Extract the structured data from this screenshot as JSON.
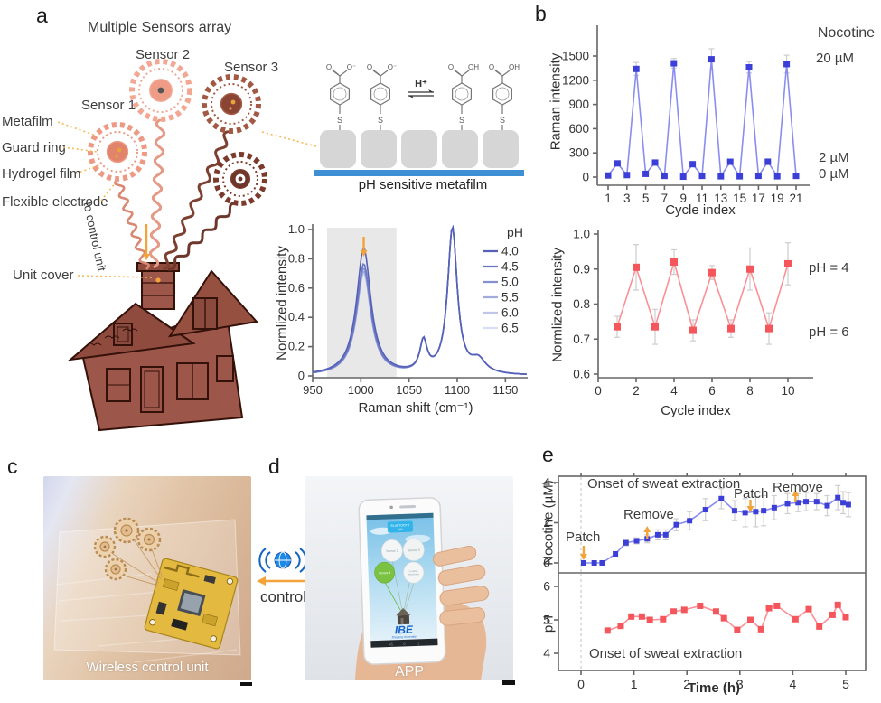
{
  "panel_a": {
    "label": "a",
    "title": "Multiple Sensors array",
    "sensors": [
      "Sensor 1",
      "Sensor 2",
      "Sensor 3"
    ],
    "callouts": [
      "Metafilm",
      "Guard ring",
      "Hydrogel film",
      "Flexible electrode"
    ],
    "unit_cover": "Unit cover",
    "wire_label": "to control unit",
    "chem": {
      "hplus": "H⁺",
      "o": "O",
      "o_minus": "O⁻",
      "oh": "OH",
      "s": "S",
      "caption": "pH sensitive metafilm"
    }
  },
  "panel_b": {
    "label": "b"
  },
  "panel_c": {
    "label": "c",
    "caption": "Wireless control unit"
  },
  "panel_d": {
    "label": "d",
    "caption": "APP",
    "phone": {
      "bt_line1": "BLUETOOTH",
      "bt_line2": "ON",
      "balloon_sensor2": "Sensor 2",
      "balloon_sensor3": "Sensor 3",
      "balloon_sensor1": "Sensor 1",
      "balloon_counter1": "counter",
      "balloon_counter2": "electrode",
      "logo": "IBE",
      "logo_sub": "Zhejiang University"
    }
  },
  "link_cd": {
    "label": "control"
  },
  "panel_e": {
    "label": "e"
  },
  "colors": {
    "blue_marker": "#3b3fd8",
    "blue_line": "#8a8df0",
    "red_marker": "#f4565c",
    "red_line": "#fb8f96",
    "orange": "#f2a438",
    "error_gray": "#cdcdcd",
    "spine": "#666666",
    "band_gray": "#e8e8e8",
    "metafilm_blue": "#3f8fd4",
    "block_gray": "#d6d6d6",
    "house": "#9d564a"
  },
  "chart_data": [
    {
      "id": "raman_spectra",
      "type": "line",
      "xlabel": "Raman shift (cm⁻¹)",
      "ylabel": "Normlized intensity",
      "xlim": [
        950,
        1172
      ],
      "ylim": [
        0,
        1.05
      ],
      "xticks": [
        950,
        1000,
        1050,
        1100,
        1150
      ],
      "yticks": [
        0,
        0.2,
        0.4,
        0.6,
        0.8,
        1.0
      ],
      "legend_title": "pH",
      "highlight_band": [
        965,
        1037
      ],
      "arrow_x": 1003,
      "peak_positions": [
        1003,
        1065,
        1095
      ],
      "series": [
        {
          "name": "4.0",
          "color": "#5560b8",
          "intensity_1003": 0.87
        },
        {
          "name": "4.5",
          "color": "#6b76c4",
          "intensity_1003": 0.76
        },
        {
          "name": "5.0",
          "color": "#8490d0",
          "intensity_1003": 0.73
        },
        {
          "name": "5.5",
          "color": "#a2abdd",
          "intensity_1003": 0.71
        },
        {
          "name": "6.0",
          "color": "#bfc6ea",
          "intensity_1003": 0.7
        },
        {
          "name": "6.5",
          "color": "#d8def4",
          "intensity_1003": 0.69
        }
      ]
    },
    {
      "id": "nicotine_cycles",
      "type": "line",
      "xlabel": "Cycle index",
      "ylabel": "Raman intensity",
      "xticks": [
        1,
        3,
        5,
        7,
        9,
        11,
        13,
        15,
        17,
        19,
        21
      ],
      "yticks": [
        0,
        300,
        600,
        900,
        1200,
        1500
      ],
      "right_labels": {
        "title": "Nocotine",
        "high": "20 µM",
        "mid": "2 µM",
        "low": "0 µM"
      },
      "x": [
        1,
        2,
        3,
        4,
        5,
        6,
        7,
        8,
        9,
        10,
        11,
        12,
        13,
        14,
        15,
        16,
        17,
        18,
        19,
        20,
        21
      ],
      "values": [
        20,
        170,
        25,
        1340,
        40,
        180,
        15,
        1410,
        5,
        160,
        15,
        1460,
        10,
        190,
        10,
        1360,
        15,
        190,
        10,
        1400,
        15
      ],
      "errors": [
        10,
        25,
        10,
        80,
        15,
        30,
        10,
        60,
        10,
        25,
        10,
        130,
        10,
        30,
        10,
        70,
        10,
        35,
        10,
        110,
        10
      ]
    },
    {
      "id": "ph_cycles",
      "type": "line",
      "xlabel": "Cycle index",
      "ylabel": "Normlized  intensity",
      "xticks": [
        0,
        2,
        4,
        6,
        8,
        10
      ],
      "yticks": [
        0.6,
        0.7,
        0.8,
        0.9,
        1.0
      ],
      "right_labels": {
        "high": "pH = 4",
        "low": "pH = 6"
      },
      "x": [
        1,
        2,
        3,
        4,
        5,
        6,
        7,
        8,
        9,
        10
      ],
      "values": [
        0.735,
        0.905,
        0.735,
        0.92,
        0.725,
        0.89,
        0.73,
        0.9,
        0.73,
        0.915
      ],
      "errors": [
        0.03,
        0.065,
        0.05,
        0.035,
        0.03,
        0.02,
        0.025,
        0.06,
        0.045,
        0.06
      ]
    },
    {
      "id": "sweat_monitoring",
      "type": "line",
      "xlabel": "Time (h)",
      "xticks": [
        0,
        1,
        2,
        3,
        4,
        5
      ],
      "subplots": [
        {
          "ylabel": "Nocotine (µM)",
          "yticks": [
            0,
            2,
            4
          ],
          "x": [
            0.05,
            0.25,
            0.4,
            0.65,
            0.85,
            1.05,
            1.25,
            1.45,
            1.6,
            1.8,
            2.05,
            2.35,
            2.65,
            2.9,
            3.1,
            3.3,
            3.45,
            3.65,
            3.9,
            4.1,
            4.25,
            4.45,
            4.65,
            4.85,
            4.95,
            5.05
          ],
          "values": [
            0,
            0,
            0,
            0.45,
            1.0,
            1.1,
            1.2,
            1.4,
            1.4,
            1.9,
            2.1,
            2.65,
            3.2,
            2.6,
            2.5,
            2.55,
            2.6,
            2.75,
            2.95,
            3.0,
            3.05,
            3.05,
            2.85,
            3.25,
            3.0,
            2.9
          ],
          "errors": [
            0.05,
            0.05,
            0.05,
            0.1,
            0.15,
            0.15,
            0.2,
            0.25,
            0.25,
            0.3,
            0.45,
            0.55,
            0.5,
            0.5,
            0.7,
            0.75,
            0.75,
            0.6,
            0.5,
            0.45,
            0.45,
            0.4,
            0.5,
            0.6,
            0.55,
            0.6
          ],
          "annotations": [
            {
              "text": "Onset of sweat extraction"
            },
            {
              "text": "Patch",
              "dir": "down",
              "x": 0.05
            },
            {
              "text": "Remove",
              "dir": "up",
              "x": 1.25
            },
            {
              "text": "Patch",
              "dir": "down",
              "x": 3.2
            },
            {
              "text": "Remove",
              "dir": "up",
              "x": 4.05
            }
          ]
        },
        {
          "ylabel": "pH",
          "yticks": [
            4,
            5,
            6
          ],
          "x": [
            0.5,
            0.75,
            0.95,
            1.15,
            1.3,
            1.55,
            1.75,
            1.95,
            2.25,
            2.55,
            2.7,
            2.95,
            3.2,
            3.4,
            3.55,
            3.7,
            4.05,
            4.3,
            4.5,
            4.75,
            4.85,
            5.0
          ],
          "values": [
            4.68,
            4.82,
            5.1,
            5.1,
            5.0,
            5.02,
            5.25,
            5.3,
            5.42,
            5.25,
            5.05,
            4.7,
            5.0,
            4.72,
            5.35,
            5.42,
            5.02,
            5.32,
            4.8,
            5.15,
            5.45,
            5.08
          ],
          "annotations": [
            {
              "text": "Onset of sweat extraction"
            }
          ]
        }
      ]
    }
  ]
}
